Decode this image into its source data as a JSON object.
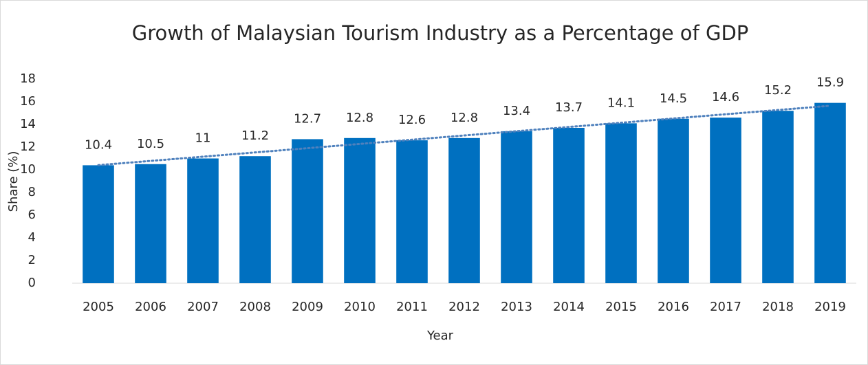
{
  "chart_data": {
    "type": "bar",
    "title": "Growth of Malaysian Tourism Industry as a Percentage of GDP",
    "x_label": "Year",
    "y_label": "Share (%)",
    "categories": [
      "2005",
      "2006",
      "2007",
      "2008",
      "2009",
      "2010",
      "2011",
      "2012",
      "2013",
      "2014",
      "2015",
      "2016",
      "2017",
      "2018",
      "2019"
    ],
    "values": [
      10.4,
      10.5,
      11,
      11.2,
      12.7,
      12.8,
      12.6,
      12.8,
      13.4,
      13.7,
      14.1,
      14.5,
      14.6,
      15.2,
      15.9
    ],
    "color": "#0070c0",
    "trendline": "linear",
    "trendline_color": "#4f81bd",
    "ylim": [
      0,
      18
    ],
    "yticks": [
      0,
      2,
      4,
      6,
      8,
      10,
      12,
      14,
      16,
      18
    ],
    "grid": false
  }
}
